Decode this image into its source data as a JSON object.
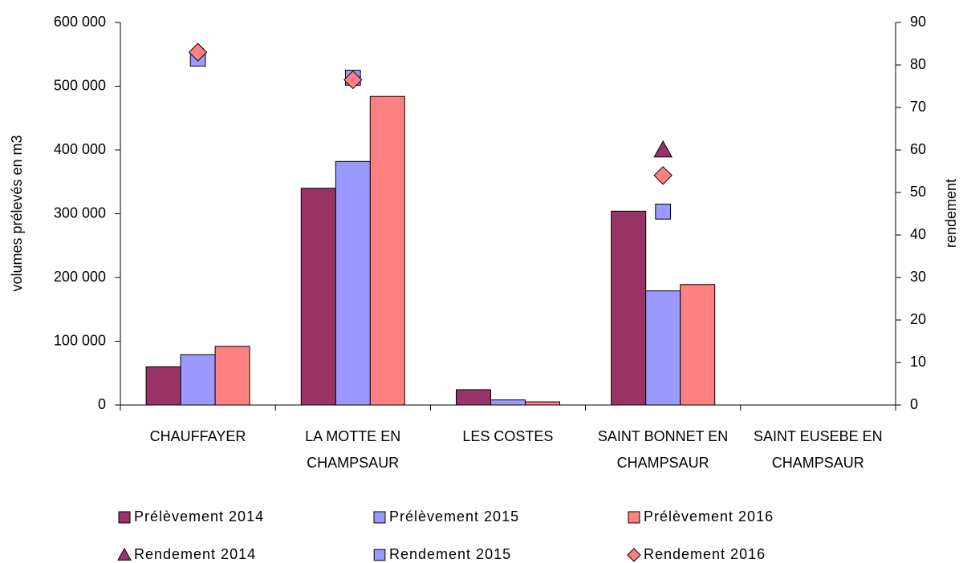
{
  "chart_data": {
    "type": "bar",
    "y_label": "volumes prélevés en m3",
    "y2_label": "rendement",
    "categories": [
      "CHAUFFAYER",
      "LA MOTTE EN CHAMPSAUR",
      "LES COSTES",
      "SAINT BONNET EN CHAMPSAUR",
      "SAINT EUSEBE EN CHAMPSAUR"
    ],
    "series": [
      {
        "name": "Prélèvement 2014",
        "type": "bar",
        "color": "#993366",
        "values": [
          60000,
          340000,
          24000,
          304000,
          null
        ]
      },
      {
        "name": "Prélèvement 2015",
        "type": "bar",
        "color": "#9999ff",
        "values": [
          79000,
          382000,
          8000,
          179000,
          null
        ]
      },
      {
        "name": "Prélèvement 2016",
        "type": "bar",
        "color": "#ff8080",
        "values": [
          92000,
          484000,
          5000,
          189000,
          null
        ]
      },
      {
        "name": "Rendement 2014",
        "type": "scatter",
        "marker": "triangle",
        "axis": "y2",
        "color": "#993366",
        "values": [
          null,
          null,
          null,
          60,
          null
        ]
      },
      {
        "name": "Rendement 2015",
        "type": "scatter",
        "marker": "square",
        "axis": "y2",
        "color": "#9999ff",
        "values": [
          81.5,
          77,
          null,
          45.5,
          null
        ]
      },
      {
        "name": "Rendement 2016",
        "type": "scatter",
        "marker": "diamond",
        "axis": "y2",
        "color": "#ff8080",
        "values": [
          83,
          76.5,
          null,
          54,
          null
        ]
      }
    ],
    "ylim": [
      0,
      600000
    ],
    "yticks": [
      0,
      {
        "value": 100000,
        "label": "100 000"
      },
      {
        "value": 200000,
        "label": "200 000"
      },
      {
        "value": 300000,
        "label": "300 000"
      },
      {
        "value": 400000,
        "label": "400 000"
      },
      {
        "value": 500000,
        "label": "500 000"
      },
      {
        "value": 600000,
        "label": "600 000"
      }
    ],
    "y2lim": [
      0,
      90
    ],
    "y2ticks": [
      0,
      10,
      20,
      30,
      40,
      50,
      60,
      70,
      80,
      90
    ],
    "legend": "bottom"
  }
}
